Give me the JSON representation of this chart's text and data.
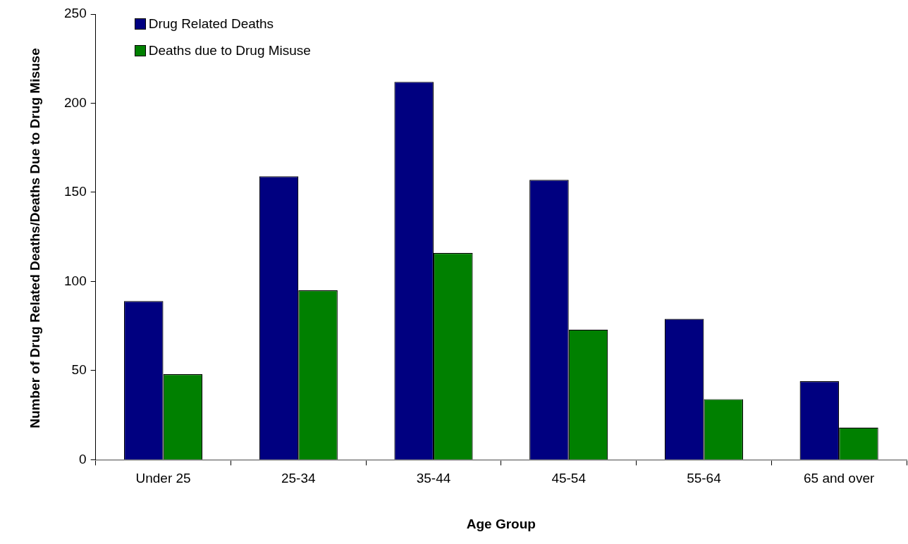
{
  "chart_data": {
    "type": "bar",
    "xlabel": "Age Group",
    "ylabel": "Number of Drug Related Deaths/Deaths Due to Drug Misuse",
    "categories": [
      "Under 25",
      "25-34",
      "35-44",
      "45-54",
      "55-64",
      "65 and over"
    ],
    "series": [
      {
        "name": "Drug Related Deaths",
        "color": "#000080",
        "values": [
          89,
          159,
          212,
          157,
          79,
          44
        ]
      },
      {
        "name": "Deaths due to Drug Misuse",
        "color": "#008000",
        "values": [
          48,
          95,
          116,
          73,
          34,
          18
        ]
      }
    ],
    "ylim": [
      0,
      250
    ],
    "yticks": [
      0,
      50,
      100,
      150,
      200,
      250
    ],
    "grid": false,
    "legend": "top left"
  }
}
